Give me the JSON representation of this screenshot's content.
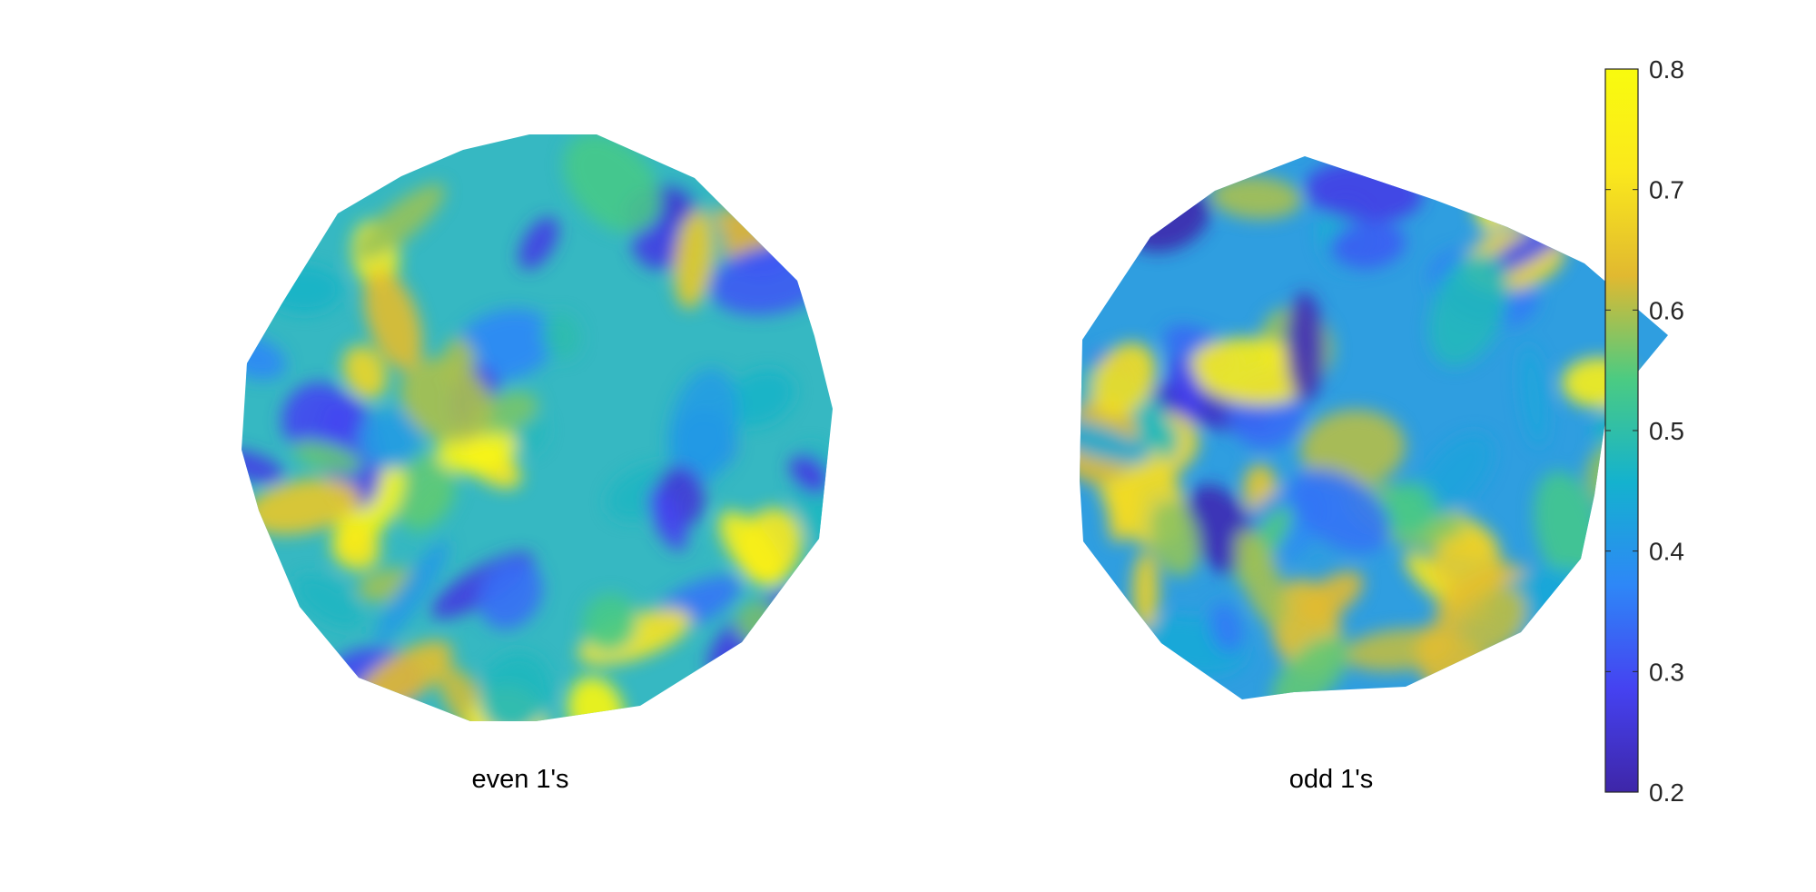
{
  "chart_data": {
    "type": "heatmap",
    "panels": [
      {
        "name": "even 1's",
        "shape": "circle",
        "value_range": [
          0.25,
          0.8
        ]
      },
      {
        "name": "odd 1's",
        "shape": "circle",
        "value_range": [
          0.2,
          0.75
        ]
      }
    ],
    "colorbar": {
      "colormap": "parula",
      "range": [
        0.2,
        0.8
      ],
      "ticks": [
        "0.2",
        "0.3",
        "0.4",
        "0.5",
        "0.6",
        "0.7",
        "0.8"
      ],
      "colors": [
        "#3e26a8",
        "#4542f1",
        "#2e87f7",
        "#14b2ce",
        "#4bcb82",
        "#e1b930",
        "#fae81c",
        "#f9fb0e"
      ]
    }
  }
}
